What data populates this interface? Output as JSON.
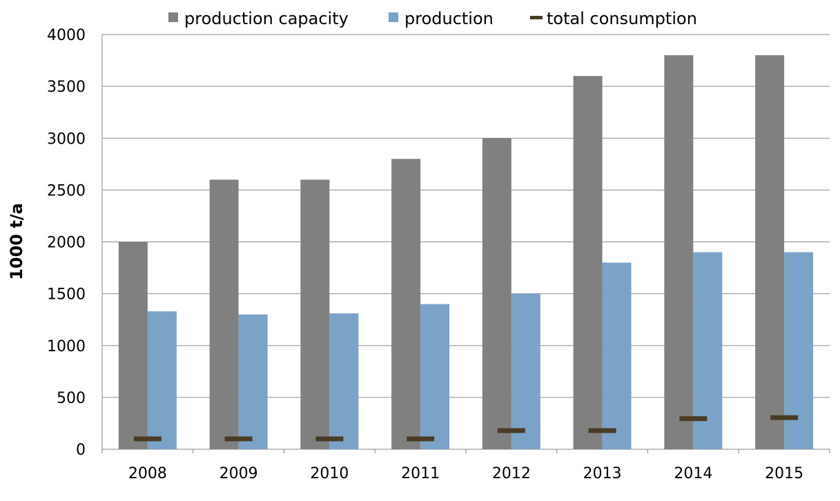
{
  "chart_data": {
    "type": "bar",
    "categories": [
      "2008",
      "2009",
      "2010",
      "2011",
      "2012",
      "2013",
      "2014",
      "2015"
    ],
    "series": [
      {
        "name": "production capacity",
        "type": "bar",
        "color": "#808080",
        "values": [
          2000,
          2600,
          2600,
          2800,
          3000,
          3600,
          3800,
          3800
        ]
      },
      {
        "name": "production",
        "type": "bar",
        "color": "#7ba3c8",
        "values": [
          1330,
          1300,
          1310,
          1400,
          1500,
          1800,
          1900,
          1900
        ]
      },
      {
        "name": "total consumption",
        "type": "marker",
        "color": "#4a3c24",
        "values": [
          100,
          100,
          100,
          100,
          180,
          180,
          295,
          305
        ]
      }
    ],
    "xlabel": "",
    "ylabel": "1000 t/a",
    "ylim": [
      0,
      4000
    ],
    "yticks": [
      "0",
      "500",
      "1000",
      "1500",
      "2000",
      "2500",
      "3000",
      "3500",
      "4000"
    ],
    "grid": true,
    "legend_position": "top"
  }
}
